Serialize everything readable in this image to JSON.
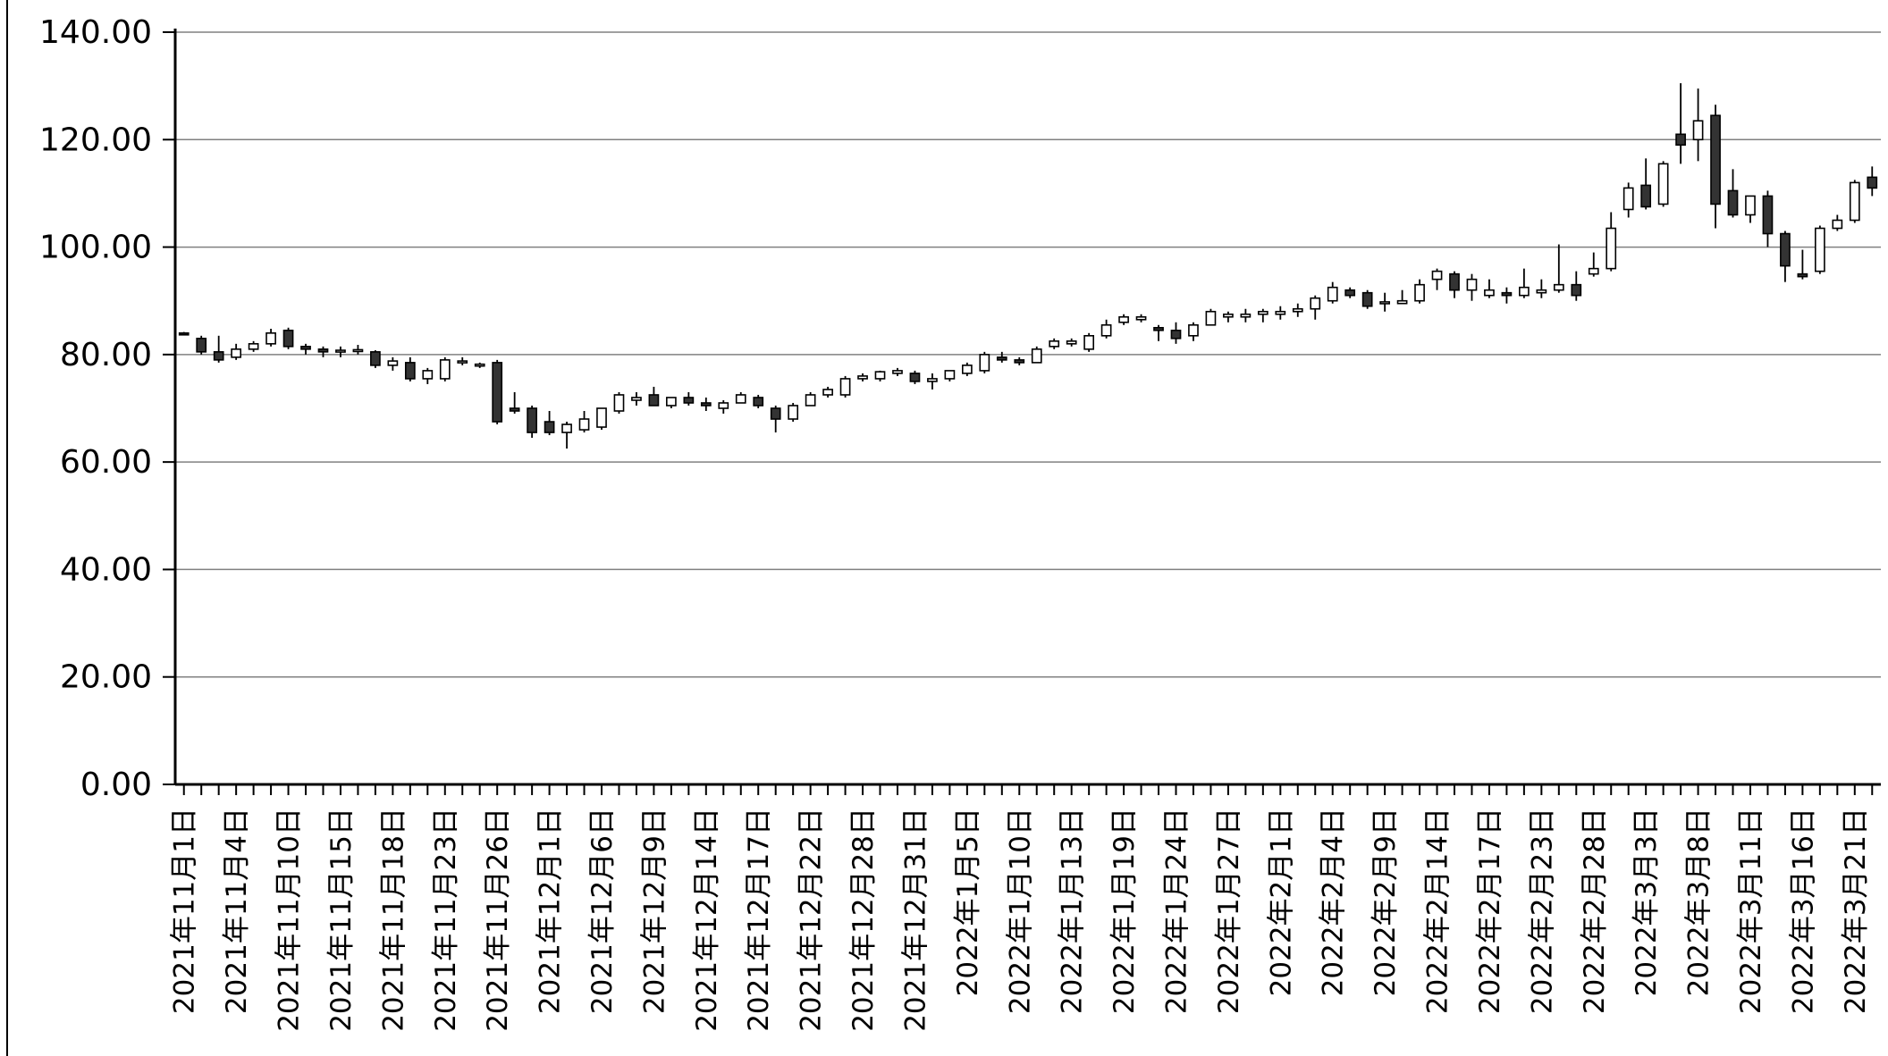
{
  "chart_data": {
    "type": "candlestick",
    "title": "",
    "xlabel": "",
    "ylabel": "",
    "ylim": [
      0,
      140
    ],
    "y_ticks": [
      "0.00",
      "20.00",
      "40.00",
      "60.00",
      "80.00",
      "100.00",
      "120.00",
      "140.00"
    ],
    "grid": true,
    "legend": "none",
    "colors": {
      "up": "#ffffff",
      "down": "#333333",
      "outline": "#000000",
      "grid": "#808080"
    },
    "x_tick_labels": [
      "2021年11月1日",
      "2021年11月4日",
      "2021年11月10日",
      "2021年11月15日",
      "2021年11月18日",
      "2021年11月23日",
      "2021年11月26日",
      "2021年12月1日",
      "2021年12月6日",
      "2021年12月9日",
      "2021年12月14日",
      "2021年12月17日",
      "2021年12月22日",
      "2021年12月28日",
      "2021年12月31日",
      "2022年1月5日",
      "2022年1月10日",
      "2022年1月13日",
      "2022年1月19日",
      "2022年1月24日",
      "2022年1月27日",
      "2022年2月1日",
      "2022年2月4日",
      "2022年2月9日",
      "2022年2月14日",
      "2022年2月17日",
      "2022年2月23日",
      "2022年2月28日",
      "2022年3月3日",
      "2022年3月8日",
      "2022年3月11日",
      "2022年3月16日",
      "2022年3月21日"
    ],
    "x_tick_every": 3,
    "candles": [
      [
        84.0,
        84.2,
        83.6,
        83.8
      ],
      [
        83.0,
        83.5,
        80.0,
        80.5
      ],
      [
        80.5,
        83.5,
        78.5,
        79.0
      ],
      [
        79.5,
        82.0,
        79.0,
        81.0
      ],
      [
        81.0,
        82.5,
        80.5,
        82.0
      ],
      [
        82.0,
        84.8,
        81.5,
        84.0
      ],
      [
        84.5,
        85.0,
        81.0,
        81.5
      ],
      [
        81.5,
        82.0,
        80.0,
        81.0
      ],
      [
        81.0,
        81.5,
        79.5,
        80.5
      ],
      [
        80.5,
        81.5,
        79.5,
        80.8
      ],
      [
        80.8,
        81.8,
        80.0,
        80.9
      ],
      [
        80.5,
        80.8,
        77.5,
        78.0
      ],
      [
        78.0,
        79.5,
        77.0,
        78.8
      ],
      [
        78.5,
        79.5,
        75.0,
        75.5
      ],
      [
        75.5,
        77.5,
        74.5,
        77.0
      ],
      [
        75.5,
        79.5,
        75.0,
        79.0
      ],
      [
        78.5,
        79.5,
        78.0,
        78.8
      ],
      [
        78.0,
        78.5,
        77.5,
        78.2
      ],
      [
        78.5,
        79.0,
        67.0,
        67.5
      ],
      [
        70.0,
        73.0,
        69.0,
        69.5
      ],
      [
        70.0,
        70.5,
        64.5,
        65.5
      ],
      [
        67.5,
        69.5,
        65.0,
        65.5
      ],
      [
        65.5,
        67.5,
        62.5,
        67.0
      ],
      [
        66.0,
        69.5,
        65.5,
        68.0
      ],
      [
        66.5,
        70.0,
        66.0,
        70.0
      ],
      [
        69.5,
        73.0,
        69.0,
        72.5
      ],
      [
        71.5,
        73.0,
        70.5,
        72.0
      ],
      [
        72.5,
        74.0,
        70.5,
        70.5
      ],
      [
        70.5,
        72.0,
        70.0,
        72.0
      ],
      [
        72.0,
        73.0,
        70.5,
        71.0
      ],
      [
        71.0,
        72.0,
        69.5,
        70.5
      ],
      [
        70.0,
        71.5,
        69.0,
        71.0
      ],
      [
        71.0,
        73.0,
        71.0,
        72.5
      ],
      [
        72.0,
        72.5,
        70.0,
        70.5
      ],
      [
        70.0,
        70.5,
        65.5,
        68.0
      ],
      [
        68.0,
        71.0,
        67.5,
        70.5
      ],
      [
        70.5,
        73.0,
        70.5,
        72.5
      ],
      [
        72.5,
        74.0,
        72.0,
        73.5
      ],
      [
        72.5,
        76.0,
        72.0,
        75.5
      ],
      [
        75.5,
        76.5,
        75.0,
        76.0
      ],
      [
        75.5,
        77.0,
        75.0,
        76.8
      ],
      [
        76.5,
        77.5,
        76.0,
        77.0
      ],
      [
        76.5,
        77.0,
        74.5,
        75.0
      ],
      [
        75.0,
        76.5,
        73.5,
        75.5
      ],
      [
        75.5,
        77.0,
        75.0,
        77.0
      ],
      [
        76.5,
        78.5,
        76.0,
        78.0
      ],
      [
        77.0,
        80.5,
        76.5,
        80.0
      ],
      [
        79.5,
        80.5,
        78.5,
        79.0
      ],
      [
        79.0,
        79.5,
        78.0,
        78.5
      ],
      [
        78.5,
        81.5,
        78.5,
        81.0
      ],
      [
        81.5,
        83.0,
        81.0,
        82.5
      ],
      [
        82.0,
        83.0,
        81.5,
        82.5
      ],
      [
        81.0,
        84.0,
        80.5,
        83.5
      ],
      [
        83.5,
        86.5,
        83.0,
        85.5
      ],
      [
        86.0,
        87.5,
        85.5,
        87.0
      ],
      [
        86.5,
        87.5,
        86.0,
        87.0
      ],
      [
        85.0,
        85.5,
        82.5,
        84.5
      ],
      [
        84.5,
        86.0,
        82.0,
        83.0
      ],
      [
        83.5,
        86.0,
        82.5,
        85.5
      ],
      [
        85.5,
        88.5,
        85.5,
        88.0
      ],
      [
        87.0,
        88.0,
        86.0,
        87.5
      ],
      [
        87.0,
        88.5,
        86.0,
        87.5
      ],
      [
        87.5,
        88.5,
        86.0,
        88.0
      ],
      [
        87.5,
        89.0,
        86.5,
        88.0
      ],
      [
        88.0,
        89.5,
        87.0,
        88.5
      ],
      [
        88.5,
        91.0,
        86.5,
        90.5
      ],
      [
        90.0,
        93.5,
        89.5,
        92.5
      ],
      [
        92.0,
        92.5,
        90.5,
        91.0
      ],
      [
        91.5,
        92.0,
        88.5,
        89.0
      ],
      [
        89.5,
        91.5,
        88.0,
        89.8
      ],
      [
        89.5,
        92.0,
        89.5,
        90.0
      ],
      [
        90.0,
        94.0,
        89.5,
        93.0
      ],
      [
        94.0,
        96.0,
        92.0,
        95.5
      ],
      [
        95.0,
        95.5,
        90.5,
        92.0
      ],
      [
        92.0,
        95.0,
        90.0,
        94.0
      ],
      [
        91.0,
        94.0,
        90.5,
        92.0
      ],
      [
        91.5,
        92.5,
        89.5,
        91.0
      ],
      [
        91.0,
        96.0,
        90.5,
        92.5
      ],
      [
        91.5,
        94.0,
        90.5,
        92.0
      ],
      [
        92.0,
        100.5,
        91.5,
        93.0
      ],
      [
        93.0,
        95.5,
        90.0,
        91.0
      ],
      [
        95.0,
        99.0,
        94.5,
        96.0
      ],
      [
        96.0,
        106.5,
        95.5,
        103.5
      ],
      [
        107.0,
        112.0,
        105.5,
        111.0
      ],
      [
        111.5,
        116.5,
        107.0,
        107.5
      ],
      [
        108.0,
        116.0,
        107.5,
        115.5
      ],
      [
        121.0,
        130.5,
        115.5,
        119.0
      ],
      [
        120.0,
        129.5,
        116.0,
        123.5
      ],
      [
        124.5,
        126.5,
        103.5,
        108.0
      ],
      [
        110.5,
        114.5,
        105.5,
        106.0
      ],
      [
        106.0,
        109.5,
        104.5,
        109.5
      ],
      [
        109.5,
        110.5,
        100.0,
        102.5
      ],
      [
        102.5,
        103.0,
        93.5,
        96.5
      ],
      [
        95.0,
        99.5,
        94.0,
        94.5
      ],
      [
        95.5,
        104.0,
        95.0,
        103.5
      ],
      [
        103.5,
        106.0,
        103.0,
        105.0
      ],
      [
        105.0,
        112.5,
        104.5,
        112.0
      ],
      [
        113.0,
        115.0,
        109.5,
        111.0
      ]
    ]
  }
}
